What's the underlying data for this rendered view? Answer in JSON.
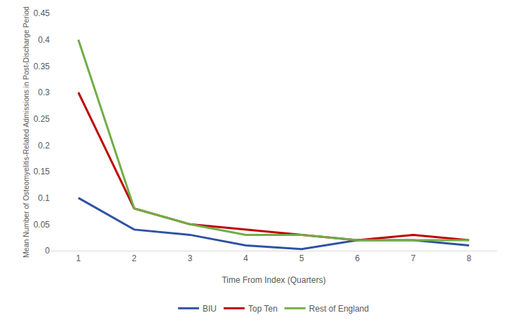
{
  "chart_data": {
    "type": "line",
    "x_label": "Time From Index (Quarters)",
    "y_label": "Mean Number of Osteomyelitis-Related Admissions in Post-Discharge Period",
    "categories": [
      "1",
      "2",
      "3",
      "4",
      "5",
      "6",
      "7",
      "8"
    ],
    "series": [
      {
        "name": "BIU",
        "color": "#2f52a3",
        "values": [
          0.1,
          0.04,
          0.03,
          0.01,
          0.003,
          0.02,
          0.02,
          0.01
        ]
      },
      {
        "name": "Top Ten",
        "color": "#c00000",
        "values": [
          0.3,
          0.08,
          0.05,
          0.04,
          0.03,
          0.02,
          0.03,
          0.02
        ]
      },
      {
        "name": "Rest of England",
        "color": "#70ad47",
        "values": [
          0.4,
          0.08,
          0.05,
          0.03,
          0.03,
          0.02,
          0.02,
          0.02
        ]
      }
    ],
    "ylim": [
      0,
      0.45
    ],
    "yticks": [
      0,
      0.05,
      0.1,
      0.15,
      0.2,
      0.25,
      0.3,
      0.35,
      0.4,
      0.45
    ],
    "grid": false,
    "legend": "bottom"
  }
}
